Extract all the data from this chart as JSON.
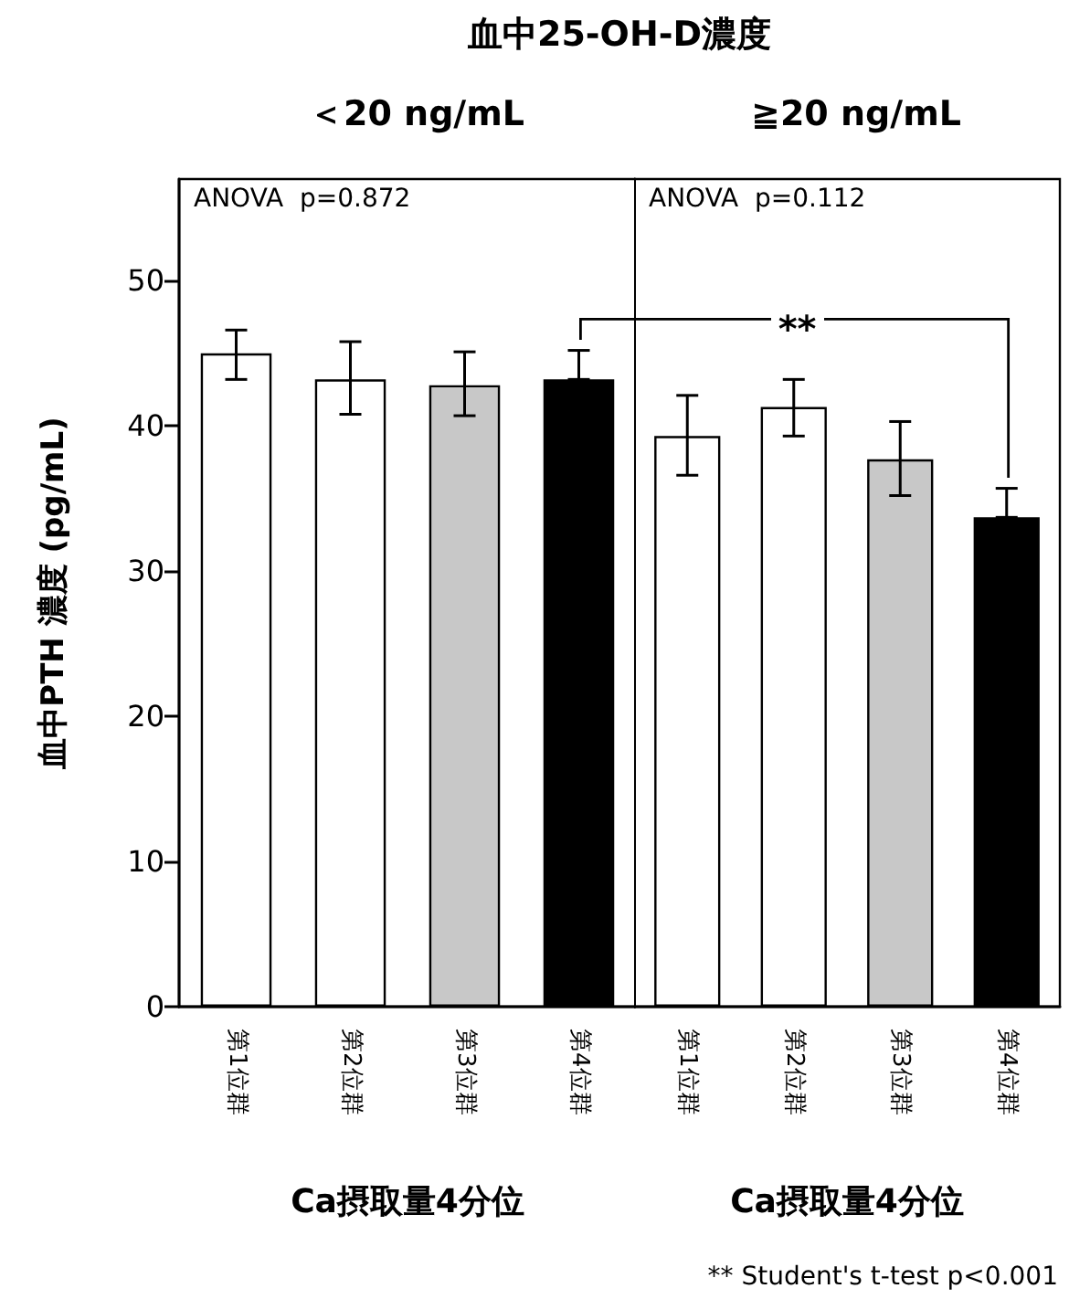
{
  "chart_data": [
    {
      "type": "bar",
      "title": "血中25-OH-D濃度",
      "subtitle": "＜20 ng/mL",
      "ylabel": "血中PTH 濃度 (pg/mL)",
      "xlabel": "Ca摂取量4分位",
      "categories": [
        "第1位群",
        "第2位群",
        "第3位群",
        "第4位群"
      ],
      "values": [
        45.0,
        43.2,
        42.8,
        43.2
      ],
      "colors": [
        "#ffffff",
        "#ffffff",
        "#c8c8c8",
        "#000000"
      ],
      "errors": [
        [
          43.2,
          46.6
        ],
        [
          40.8,
          45.8
        ],
        [
          40.7,
          45.1
        ],
        [
          43.2,
          45.2
        ]
      ],
      "ylim": [
        0,
        57
      ],
      "yticks": [
        0,
        10,
        20,
        30,
        40,
        50
      ],
      "annotations": [
        "ANOVA  p=0.872"
      ]
    },
    {
      "type": "bar",
      "subtitle": "≧20 ng/mL",
      "xlabel": "Ca摂取量4分位",
      "categories": [
        "第1位群",
        "第2位群",
        "第3位群",
        "第4位群"
      ],
      "values": [
        39.3,
        41.3,
        37.7,
        33.7
      ],
      "colors": [
        "#ffffff",
        "#ffffff",
        "#c8c8c8",
        "#000000"
      ],
      "errors": [
        [
          36.6,
          42.1
        ],
        [
          39.3,
          43.2
        ],
        [
          35.2,
          40.3
        ],
        [
          33.7,
          35.7
        ]
      ],
      "ylim": [
        0,
        57
      ],
      "yticks": [
        0,
        10,
        20,
        30,
        40,
        50
      ],
      "tick_labels": "x",
      "annotations": [
        "ANOVA  p=0.112",
        "**",
        "** Student's t-test p<0.001"
      ]
    }
  ]
}
